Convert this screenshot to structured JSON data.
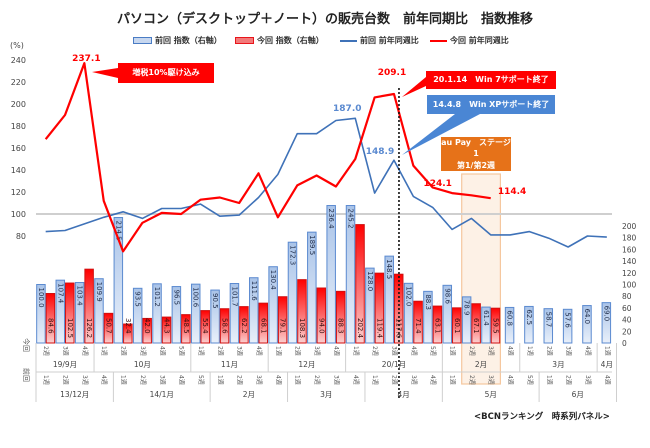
{
  "title": "パソコン（デスクトップ＋ノート）の販売台数　前年同期比　指数推移",
  "unit_label": "(%)",
  "footnote": "<BCNランキング　時系列パネル>",
  "legend": [
    {
      "label": "前回 指数（右軸）",
      "kind": "bar",
      "color": "#4a7cc4"
    },
    {
      "label": "今回 指数（右軸）",
      "kind": "bar",
      "color": "#e8151b"
    },
    {
      "label": "前回 前年同週比",
      "kind": "line",
      "color": "#3f72b8"
    },
    {
      "label": "今回 前年同週比",
      "kind": "line",
      "color": "#ff0000"
    }
  ],
  "callouts": {
    "tax": "増税10%駆け込み",
    "win7": "20.1.14　Win 7サポート終了",
    "winxp": "14.4.8　Win XPサポート終了",
    "aupay_line1": "au Pay　ステージ1",
    "aupay_line2": "第1/第2週"
  },
  "row_labels": {
    "current": "今回",
    "previous": "前回"
  },
  "chart_data": {
    "type": "bar+line",
    "title": "パソコン（デスクトップ＋ノート）の販売台数　前年同期比　指数推移",
    "ylabel_left": "(%)",
    "ylim_left": [
      60,
      240
    ],
    "yticks_left": [
      80,
      100,
      120,
      140,
      160,
      180,
      200,
      220,
      240
    ],
    "ylim_right": [
      0,
      200
    ],
    "yticks_right": [
      0,
      20,
      40,
      60,
      80,
      100,
      120,
      140,
      160,
      180,
      200
    ],
    "reference_line": 100,
    "categories_current": [
      "2週",
      "3週",
      "4週",
      "1週",
      "2週",
      "3週",
      "4週",
      "5週",
      "1週",
      "2週",
      "3週",
      "4週",
      "1週",
      "2週",
      "3週",
      "4週",
      "1週",
      "2週",
      "3週",
      "4週",
      "5週",
      "1週",
      "2週",
      "3週",
      "4週",
      "1週",
      "2週",
      "3週",
      "4週",
      "1週"
    ],
    "month_groups_current": [
      {
        "label": "19/9月",
        "span": 3
      },
      {
        "label": "10月",
        "span": 5
      },
      {
        "label": "11月",
        "span": 4
      },
      {
        "label": "12月",
        "span": 4
      },
      {
        "label": "20/1月",
        "span": 5
      },
      {
        "label": "2月",
        "span": 4
      },
      {
        "label": "3月",
        "span": 4
      },
      {
        "label": "4月",
        "span": 1
      }
    ],
    "categories_previous": [
      "1週",
      "2週",
      "3週",
      "4週",
      "1週",
      "2週",
      "3週",
      "4週",
      "5週",
      "1週",
      "2週",
      "3週",
      "4週",
      "1週",
      "2週",
      "3週",
      "4週",
      "1週",
      "2週",
      "3週",
      "4週",
      "1週",
      "2週",
      "3週",
      "4週",
      "5週",
      "1週",
      "2週",
      "3週",
      "4週"
    ],
    "month_groups_previous": [
      {
        "label": "13/12月",
        "span": 4
      },
      {
        "label": "14/1月",
        "span": 5
      },
      {
        "label": "2月",
        "span": 4
      },
      {
        "label": "3月",
        "span": 4
      },
      {
        "label": "4月",
        "span": 4
      },
      {
        "label": "5月",
        "span": 5
      },
      {
        "label": "6月",
        "span": 4
      }
    ],
    "series": [
      {
        "name": "前回 指数（右軸）",
        "type": "bar",
        "axis": "right",
        "values": [
          100.0,
          107.4,
          103.4,
          109.9,
          214.5,
          93.5,
          101.2,
          96.5,
          100.6,
          90.5,
          101.7,
          111.6,
          130.4,
          172.3,
          189.5,
          236.4,
          245.2,
          128.0,
          148.5,
          102.0,
          88.3,
          98.6,
          78.9,
          61.4,
          60.8,
          62.5,
          58.7,
          57.6,
          64.0,
          69.0
        ]
      },
      {
        "name": "今回 指数（右軸）",
        "type": "bar",
        "axis": "right",
        "values": [
          84.6,
          102.5,
          126.2,
          50.7,
          32.4,
          42.0,
          44.3,
          48.5,
          55.4,
          58.6,
          62.2,
          68.1,
          79.1,
          108.3,
          94.0,
          88.3,
          202.4,
          119.4,
          117.6,
          71.4,
          63.1,
          60.1,
          67.1,
          59.5,
          null,
          null,
          null,
          null,
          null,
          null
        ]
      },
      {
        "name": "前回 前年同週比",
        "type": "line",
        "axis": "left",
        "values": [
          84,
          85,
          91,
          97,
          102,
          96,
          105,
          105,
          109,
          98,
          99,
          115,
          136,
          173,
          173,
          185,
          187,
          119,
          148.9,
          116,
          106,
          86,
          96,
          81,
          81,
          84,
          78,
          70,
          80,
          79
        ]
      },
      {
        "name": "今回 前年同週比",
        "type": "line",
        "axis": "left",
        "values": [
          168,
          190,
          237.1,
          112,
          66,
          92,
          101,
          100,
          113,
          115,
          110,
          137,
          97,
          126,
          135,
          125,
          150,
          206,
          209.1,
          144,
          124.1,
          119,
          117,
          114.4,
          null,
          null,
          null,
          null,
          null,
          null
        ]
      }
    ],
    "data_labels": {
      "current_line_peak": "237.1",
      "current_line_win7": "209.1",
      "current_line_a": "124.1",
      "current_line_last": "114.4",
      "previous_line_peak": "187.0",
      "previous_line_winxp": "148.9"
    },
    "highlight_range": {
      "label": "au Pay ステージ1 第1/第2週",
      "categories": [
        "2月 2週",
        "2月 3週"
      ]
    },
    "vertical_marker": {
      "at_category_index": 18,
      "style": "dotted"
    }
  }
}
